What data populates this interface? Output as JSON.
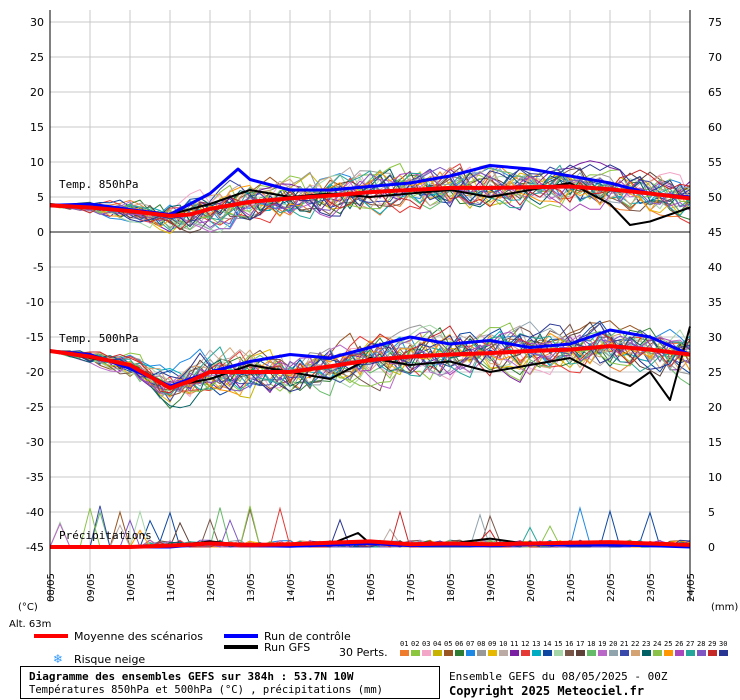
{
  "chart_data": {
    "type": "line",
    "title": "Diagramme des ensembles GEFS sur 384h : 53.7N 10W",
    "subtitle": "Températures 850hPa et 500hPa (°C) , précipitations (mm)",
    "left_axis": {
      "unit_label": "(°C)",
      "range": [
        -45,
        30
      ],
      "ticks": [
        30,
        25,
        20,
        15,
        10,
        5,
        0,
        -5,
        -10,
        -15,
        -20,
        -25,
        -30,
        -35,
        -40,
        -45
      ]
    },
    "right_axis": {
      "unit_label": "(mm)",
      "ticks": [
        75,
        70,
        65,
        60,
        55,
        50,
        45,
        40,
        35,
        30,
        25,
        20,
        15,
        10,
        5,
        0
      ]
    },
    "x_ticks": [
      "08/05",
      "09/05",
      "10/05",
      "11/05",
      "12/05",
      "13/05",
      "14/05",
      "15/05",
      "16/05",
      "17/05",
      "18/05",
      "19/05",
      "20/05",
      "21/05",
      "22/05",
      "23/05",
      "24/05"
    ],
    "panel_labels": {
      "t850": "Temp. 850hPa",
      "t500": "Temp. 500hPa",
      "precip": "Précipitations"
    },
    "altitude": "Alt. 63m",
    "series": [
      {
        "name": "Moyenne des scénarios",
        "t850_x": [
          0,
          1,
          2,
          3,
          3.5,
          4,
          5,
          6,
          7,
          8,
          9,
          10,
          11,
          12,
          13,
          14,
          15,
          16
        ],
        "t850": [
          3.8,
          3.5,
          3.0,
          2.3,
          2.5,
          3.3,
          4.3,
          4.8,
          5.2,
          5.7,
          6.0,
          6.3,
          6.3,
          6.4,
          6.5,
          6.1,
          5.5,
          4.8
        ],
        "t500_x": [
          0,
          1,
          2,
          3,
          3.5,
          4,
          5,
          6,
          7,
          8,
          9,
          10,
          11,
          12,
          13,
          14,
          15,
          16
        ],
        "t500": [
          -17.0,
          -17.8,
          -19.0,
          -22.3,
          -21.3,
          -20.0,
          -20.0,
          -20.0,
          -19.2,
          -18.3,
          -17.8,
          -17.5,
          -17.3,
          -17.0,
          -16.8,
          -16.3,
          -16.8,
          -17.5
        ],
        "precip_x": [
          0,
          2,
          3,
          4,
          5,
          6,
          7,
          8,
          9,
          10,
          11,
          12,
          13,
          14,
          15,
          16
        ],
        "precip": [
          0,
          0,
          0.2,
          0.5,
          0.3,
          0.4,
          0.6,
          0.8,
          0.4,
          0.5,
          0.4,
          0.5,
          0.6,
          0.7,
          0.5,
          0.3
        ]
      },
      {
        "name": "Run de contrôle",
        "t850_x": [
          0,
          1,
          2,
          3,
          4,
          4.7,
          5,
          6,
          7,
          8,
          9,
          10,
          11,
          12,
          13,
          14,
          15,
          16
        ],
        "t850": [
          3.8,
          4.0,
          3.2,
          2.5,
          5.5,
          9.0,
          7.5,
          6.0,
          6.0,
          6.5,
          7.0,
          8.0,
          9.5,
          9.0,
          8.0,
          7.0,
          5.5,
          5.0
        ],
        "t500_x": [
          0,
          1,
          2,
          3,
          4,
          5,
          6,
          7,
          8,
          9,
          10,
          11,
          12,
          13,
          14,
          15,
          16
        ],
        "t500": [
          -17.0,
          -17.5,
          -19.5,
          -22.0,
          -20.0,
          -18.5,
          -17.5,
          -18.0,
          -16.5,
          -15.0,
          -16.0,
          -15.5,
          -16.5,
          -16.0,
          -14.0,
          -15.0,
          -17.5
        ],
        "precip_x": [
          0,
          3,
          4,
          5,
          6,
          7,
          8,
          9,
          10,
          11,
          12,
          13,
          14,
          15,
          16
        ],
        "precip": [
          0,
          0,
          0.5,
          0.2,
          0.1,
          0.3,
          0.5,
          0.2,
          0.3,
          0.2,
          0.4,
          0.3,
          0.3,
          0.2,
          0
        ]
      },
      {
        "name": "Run GFS",
        "t850_x": [
          0,
          1,
          2,
          3,
          4,
          5,
          6,
          7,
          8,
          9,
          10,
          11,
          12,
          13,
          14,
          14.5,
          15,
          16
        ],
        "t850": [
          4.0,
          3.5,
          3.0,
          2.5,
          4.0,
          6.0,
          5.0,
          5.5,
          5.0,
          5.5,
          6.0,
          5.0,
          6.0,
          7.0,
          4.0,
          1.0,
          1.5,
          3.5
        ],
        "t500_x": [
          0,
          1,
          2,
          3,
          4,
          5,
          6,
          7,
          8,
          9,
          10,
          11,
          12,
          13,
          14,
          14.5,
          15,
          15.5,
          16
        ],
        "t500": [
          -17.0,
          -18.0,
          -19.0,
          -22.0,
          -21.0,
          -19.0,
          -20.0,
          -21.0,
          -18.0,
          -19.0,
          -18.5,
          -20.0,
          -19.0,
          -18.0,
          -21.0,
          -22.0,
          -20.0,
          -24.0,
          -13.5
        ],
        "precip_x": [
          0,
          3,
          4,
          5,
          6,
          7,
          7.7,
          8,
          9,
          10,
          11,
          12,
          13,
          14,
          15,
          16
        ],
        "precip": [
          0,
          0.1,
          0.8,
          0.2,
          0.2,
          0.4,
          2.0,
          0.5,
          0.3,
          0.5,
          1.2,
          0.4,
          0.3,
          0.4,
          0.3,
          0
        ]
      }
    ],
    "perturbations_label": "30 Perts.",
    "perturbation_ids": [
      "01",
      "02",
      "03",
      "04",
      "05",
      "06",
      "07",
      "08",
      "09",
      "10",
      "11",
      "12",
      "13",
      "14",
      "15",
      "16",
      "17",
      "18",
      "19",
      "20",
      "21",
      "22",
      "23",
      "24",
      "25",
      "26",
      "27",
      "28",
      "29",
      "30"
    ],
    "perturbation_colors": [
      "#ee7c2c",
      "#8cc63f",
      "#f3a6c8",
      "#c8b400",
      "#995522",
      "#2e7d32",
      "#1e88e5",
      "#999999",
      "#e6b800",
      "#bcaaa4",
      "#7b1fa2",
      "#e53935",
      "#00acc1",
      "#0d47a1",
      "#a5d6a7",
      "#795548",
      "#5d4037",
      "#66bb6a",
      "#ba68c8",
      "#90a4ae",
      "#3949ab",
      "#d4a373",
      "#006064",
      "#8bc34a",
      "#ff9800",
      "#ab47bc",
      "#26a69a",
      "#7e57c2",
      "#c62828",
      "#283593"
    ],
    "legend": {
      "mean": "Moyenne des scénarios",
      "control": "Run de contrôle",
      "gfs": "Run GFS",
      "snow": "Risque neige"
    },
    "colors": {
      "mean": "#ff0000",
      "control": "#0000ff",
      "gfs": "#000000"
    }
  },
  "footer": {
    "ensemble": "Ensemble GEFS du 08/05/2025 - 00Z",
    "copyright": "Copyright 2025 Meteociel.fr"
  }
}
